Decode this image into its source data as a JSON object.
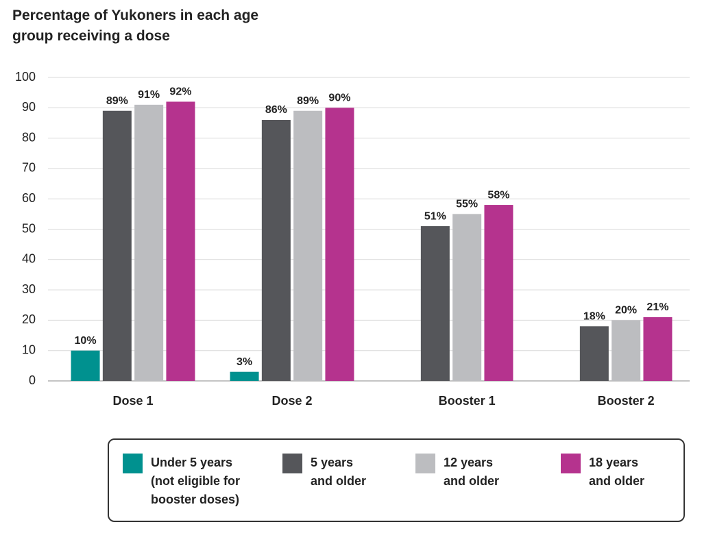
{
  "chart_data": {
    "type": "bar",
    "title": "Percentage of Yukoners in each age group receiving a dose",
    "categories": [
      "Dose 1",
      "Dose 2",
      "Booster 1",
      "Booster 2"
    ],
    "series": [
      {
        "name": "Under 5 years (not eligible for booster doses)",
        "color": "#00918f",
        "values": [
          10,
          3,
          null,
          null
        ],
        "value_labels": [
          "10%",
          "3%",
          null,
          null
        ]
      },
      {
        "name": "5 years and older",
        "color": "#55565a",
        "values": [
          89,
          86,
          51,
          18
        ],
        "value_labels": [
          "89%",
          "86%",
          "51%",
          "18%"
        ]
      },
      {
        "name": "12 years and older",
        "color": "#bcbdc0",
        "values": [
          91,
          89,
          55,
          20
        ],
        "value_labels": [
          "91%",
          "89%",
          "55%",
          "20%"
        ]
      },
      {
        "name": "18 years and older",
        "color": "#b5338e",
        "values": [
          92,
          90,
          58,
          21
        ],
        "value_labels": [
          "92%",
          "90%",
          "58%",
          "21%"
        ]
      }
    ],
    "ylim": [
      0,
      100
    ],
    "yticks": [
      0,
      10,
      20,
      30,
      40,
      50,
      60,
      70,
      80,
      90,
      100
    ],
    "grid": true,
    "legend": "bottom"
  }
}
